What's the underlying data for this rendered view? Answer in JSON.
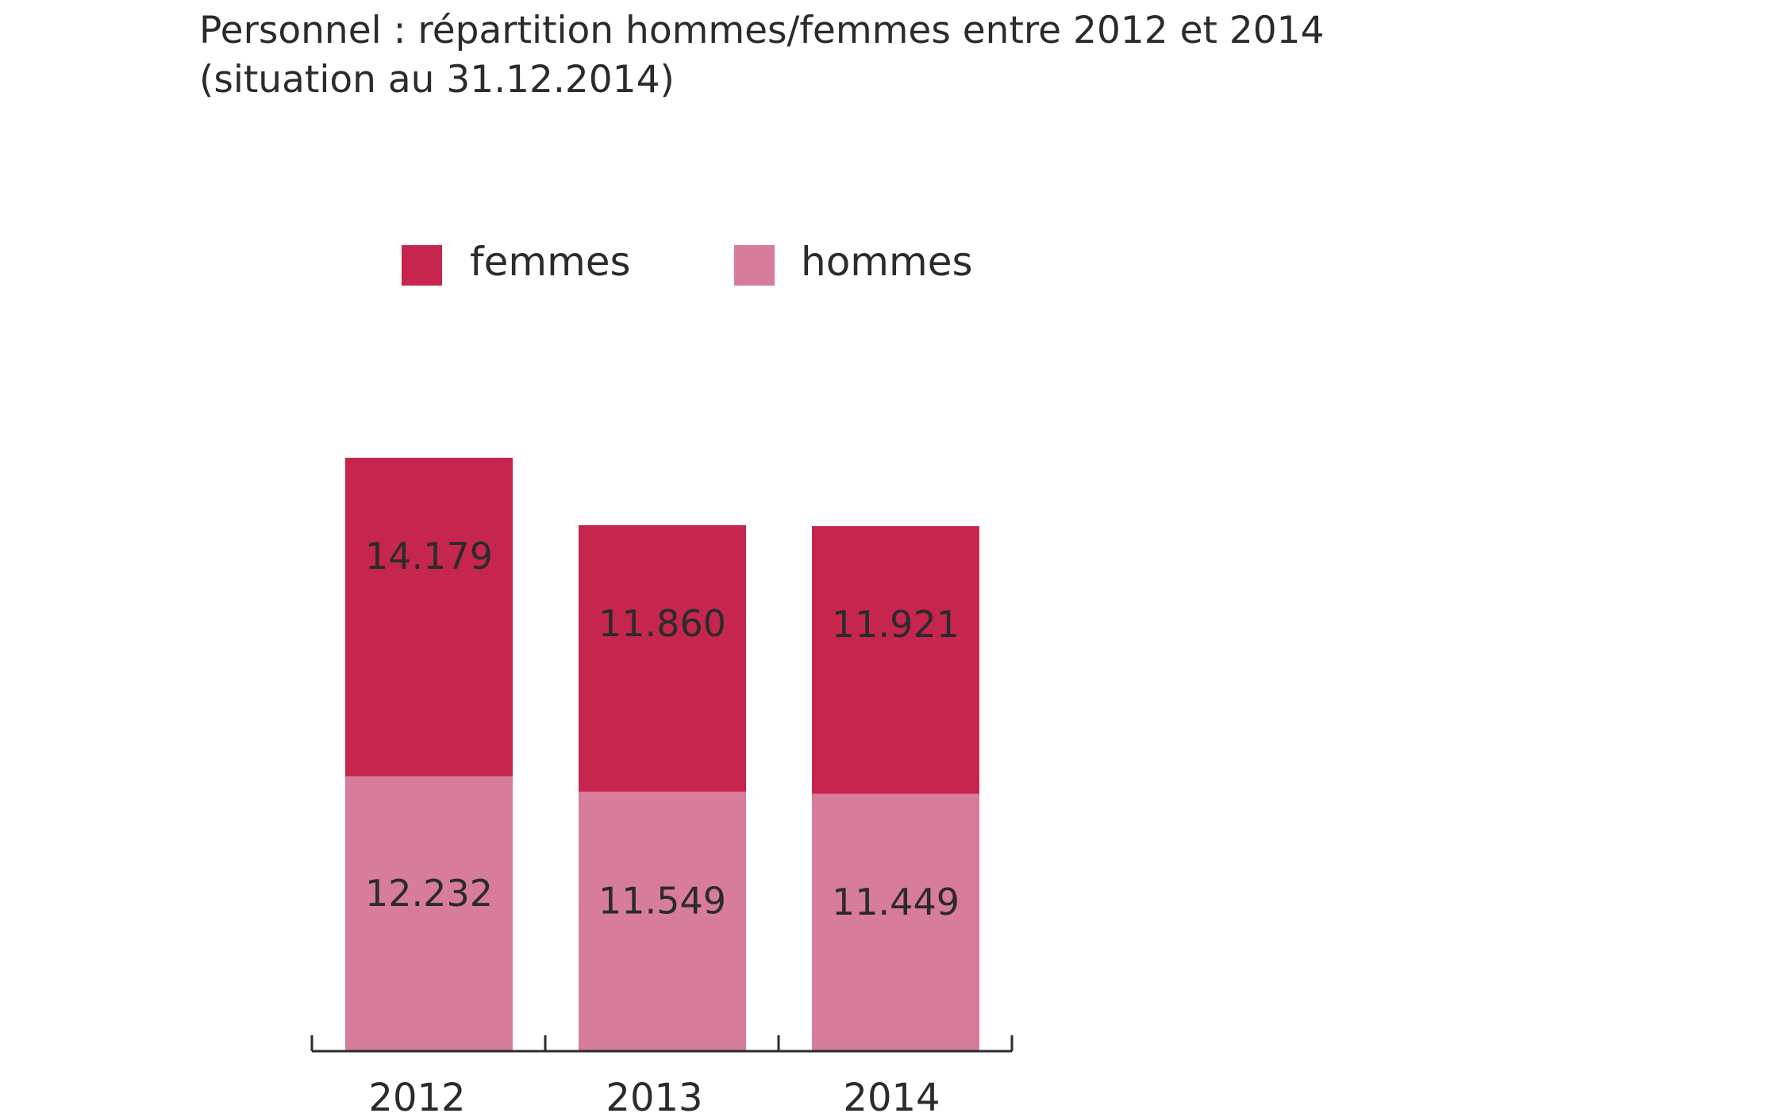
{
  "chart_data": {
    "type": "bar",
    "stacked": true,
    "title": "Personnel : répartition hommes/femmes entre 2012 et 2014",
    "subtitle": "(situation au 31.12.2014)",
    "xlabel": "",
    "ylabel": "",
    "categories": [
      "2012",
      "2013",
      "2014"
    ],
    "series": [
      {
        "name": "hommes",
        "values": [
          12232,
          11549,
          11449
        ],
        "labels": [
          "12.232",
          "11.549",
          "11.449"
        ],
        "color": "#d87c9b"
      },
      {
        "name": "femmes",
        "values": [
          14179,
          11860,
          11921
        ],
        "labels": [
          "14.179",
          "11.860",
          "11.921"
        ],
        "color": "#c6264e"
      }
    ],
    "legend": {
      "placement": "top",
      "entries": [
        {
          "name": "femmes",
          "color": "#c6264e"
        },
        {
          "name": "hommes",
          "color": "#d87c9b"
        }
      ]
    },
    "ylim": [
      0,
      26411
    ],
    "grid": false,
    "axis_color": "#2b2b2b"
  }
}
